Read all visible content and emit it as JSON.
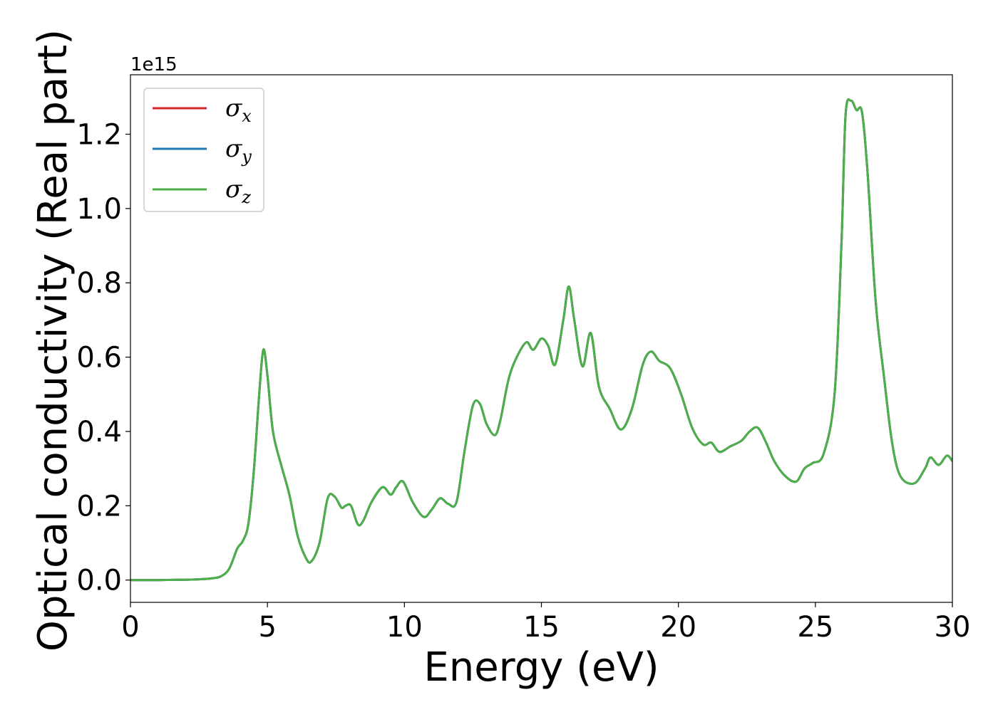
{
  "chart_data": {
    "type": "line",
    "xlabel": "Energy (eV)",
    "ylabel": "Optical conductivity (Real part)",
    "y_offset_text": "1e15",
    "xlim": [
      0,
      30
    ],
    "ylim": [
      -0.06,
      1.36
    ],
    "x_ticks": [
      "0",
      "5",
      "10",
      "15",
      "20",
      "25",
      "30"
    ],
    "y_ticks": [
      "0.0",
      "0.2",
      "0.4",
      "0.6",
      "0.8",
      "1.0",
      "1.2"
    ],
    "grid": false,
    "legend_position": "top-left",
    "series": [
      {
        "name": "σx",
        "symbol": "σ",
        "sub": "x",
        "color": "#d62728"
      },
      {
        "name": "σy",
        "symbol": "σ",
        "sub": "y",
        "color": "#1f77b4"
      },
      {
        "name": "σz",
        "symbol": "σ",
        "sub": "z",
        "color": "#4daf4a"
      }
    ],
    "x": [
      0,
      1,
      2,
      2.5,
      3,
      3.3,
      3.6,
      3.9,
      4.1,
      4.3,
      4.5,
      4.7,
      4.85,
      5.0,
      5.2,
      5.5,
      5.8,
      6.1,
      6.4,
      6.6,
      6.9,
      7.2,
      7.45,
      7.7,
      7.85,
      8.05,
      8.3,
      8.5,
      8.8,
      9.2,
      9.5,
      9.7,
      9.95,
      10.3,
      10.7,
      11.0,
      11.3,
      11.6,
      11.9,
      12.2,
      12.5,
      12.75,
      13.0,
      13.3,
      13.5,
      13.8,
      14.1,
      14.45,
      14.7,
      15.0,
      15.25,
      15.5,
      15.8,
      16.0,
      16.2,
      16.5,
      16.8,
      17.1,
      17.5,
      17.9,
      18.3,
      18.7,
      19.0,
      19.3,
      19.7,
      20.1,
      20.5,
      20.9,
      21.2,
      21.5,
      21.9,
      22.3,
      22.6,
      22.9,
      23.2,
      23.5,
      23.9,
      24.3,
      24.6,
      24.9,
      25.3,
      25.7,
      25.95,
      26.1,
      26.3,
      26.5,
      26.7,
      26.9,
      27.2,
      27.5,
      27.8,
      28.1,
      28.6,
      29.0,
      29.2,
      29.5,
      29.8,
      30.0
    ],
    "y": [
      0.0,
      0.0,
      0.001,
      0.002,
      0.005,
      0.01,
      0.03,
      0.085,
      0.105,
      0.15,
      0.29,
      0.5,
      0.62,
      0.55,
      0.4,
      0.31,
      0.23,
      0.12,
      0.06,
      0.05,
      0.1,
      0.22,
      0.225,
      0.195,
      0.2,
      0.2,
      0.15,
      0.16,
      0.21,
      0.25,
      0.23,
      0.25,
      0.265,
      0.21,
      0.17,
      0.19,
      0.22,
      0.205,
      0.21,
      0.35,
      0.47,
      0.475,
      0.42,
      0.39,
      0.43,
      0.54,
      0.6,
      0.64,
      0.62,
      0.65,
      0.63,
      0.58,
      0.7,
      0.79,
      0.7,
      0.575,
      0.665,
      0.52,
      0.46,
      0.405,
      0.46,
      0.58,
      0.615,
      0.59,
      0.57,
      0.5,
      0.41,
      0.365,
      0.37,
      0.345,
      0.36,
      0.375,
      0.4,
      0.41,
      0.37,
      0.32,
      0.28,
      0.265,
      0.3,
      0.315,
      0.34,
      0.5,
      0.9,
      1.25,
      1.29,
      1.265,
      1.26,
      1.1,
      0.75,
      0.55,
      0.37,
      0.28,
      0.26,
      0.3,
      0.33,
      0.31,
      0.335,
      0.32
    ]
  }
}
